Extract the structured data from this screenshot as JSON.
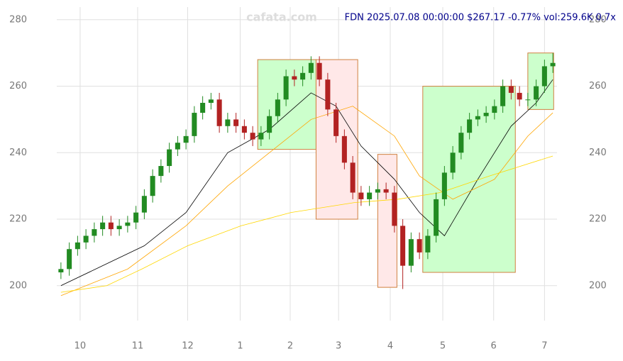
{
  "chart_data": {
    "type": "candlestick",
    "title": "FDN 2025.07.08 00:00:00 $267.17 -0.77% vol:259.6K 0.7x",
    "watermark": "cafata.com",
    "x": [
      0,
      1,
      2,
      3,
      4,
      5,
      6,
      7,
      8,
      9,
      10,
      11,
      12,
      13,
      14,
      15,
      16,
      17,
      18,
      19,
      20,
      21,
      22,
      23,
      24,
      25,
      26,
      27,
      28,
      29,
      30,
      31,
      32,
      33,
      34,
      35,
      36,
      37,
      38,
      39,
      40,
      41,
      42,
      43,
      44,
      45,
      46,
      47,
      48,
      49,
      50,
      51,
      52,
      53,
      54,
      55,
      56,
      57,
      58,
      59
    ],
    "open": [
      204,
      205,
      211,
      213,
      215,
      217,
      219,
      217,
      218,
      219,
      222,
      227,
      233,
      236,
      241,
      243,
      245,
      252,
      255,
      256,
      248,
      250,
      248,
      246,
      244,
      246,
      251,
      256,
      263,
      262,
      264,
      267,
      262,
      253,
      245,
      237,
      228,
      226,
      228,
      229,
      228,
      218,
      206,
      214,
      210,
      215,
      226,
      234,
      240,
      246,
      250,
      251,
      252,
      254,
      260,
      258,
      256,
      256,
      260,
      266
    ],
    "high": [
      207,
      213,
      215,
      217,
      219,
      221,
      221,
      220,
      221,
      224,
      229,
      235,
      238,
      243,
      245,
      247,
      254,
      257,
      258,
      258,
      252,
      252,
      250,
      248,
      248,
      253,
      258,
      265,
      265,
      266,
      269,
      269,
      264,
      255,
      247,
      239,
      230,
      230,
      231,
      231,
      230,
      220,
      216,
      216,
      217,
      228,
      236,
      242,
      248,
      252,
      253,
      254,
      256,
      262,
      262,
      260,
      258,
      262,
      268,
      270
    ],
    "low": [
      202,
      203,
      209,
      211,
      213,
      215,
      215,
      215,
      216,
      217,
      220,
      225,
      231,
      234,
      239,
      241,
      243,
      250,
      253,
      246,
      246,
      246,
      244,
      242,
      242,
      244,
      249,
      254,
      260,
      260,
      262,
      260,
      251,
      243,
      235,
      226,
      224,
      224,
      226,
      226,
      216,
      199,
      204,
      208,
      208,
      213,
      224,
      232,
      238,
      244,
      248,
      249,
      250,
      252,
      256,
      254,
      254,
      254,
      258,
      264
    ],
    "close": [
      205,
      211,
      213,
      215,
      217,
      219,
      217,
      218,
      219,
      222,
      227,
      233,
      236,
      241,
      243,
      245,
      252,
      255,
      256,
      248,
      250,
      248,
      246,
      244,
      246,
      251,
      256,
      263,
      262,
      264,
      267,
      262,
      253,
      245,
      237,
      228,
      226,
      228,
      229,
      228,
      218,
      206,
      214,
      210,
      215,
      226,
      234,
      240,
      246,
      250,
      251,
      252,
      254,
      260,
      258,
      256,
      256,
      260,
      266,
      267
    ],
    "up_color": "#228b22",
    "down_color": "#b22222",
    "overlays": [
      {
        "color": "#000000",
        "x": [
          0,
          5,
          10,
          15,
          20,
          25,
          30,
          33,
          36,
          40,
          43,
          46,
          50,
          54,
          57,
          59
        ],
        "values": [
          200,
          206,
          212,
          222,
          240,
          247,
          258,
          254,
          242,
          232,
          222,
          215,
          232,
          248,
          255,
          262
        ]
      },
      {
        "color": "#ffa500",
        "x": [
          0,
          8,
          15,
          20,
          25,
          30,
          35,
          40,
          43,
          47,
          52,
          56,
          59
        ],
        "values": [
          197,
          205,
          218,
          230,
          240,
          250,
          254,
          245,
          233,
          226,
          232,
          245,
          252
        ]
      },
      {
        "color": "#ffd700",
        "x": [
          0,
          5.5,
          9.7,
          15.2,
          21.6,
          27.6,
          35.2,
          40.4,
          45.5,
          51.4,
          59
        ],
        "values": [
          198,
          200,
          205,
          212,
          218,
          222,
          225,
          226,
          228,
          233,
          239
        ]
      }
    ],
    "boxes": [
      {
        "x": [
          23.6,
          30.6
        ],
        "y": [
          241,
          268
        ],
        "color": "#ccffcc"
      },
      {
        "x": [
          30.6,
          35.6
        ],
        "y": [
          220,
          268
        ],
        "color": "#ffe8e8"
      },
      {
        "x": [
          38.0,
          40.3
        ],
        "y": [
          199.5,
          239.5
        ],
        "color": "#ffe8e8"
      },
      {
        "x": [
          43.4,
          54.5
        ],
        "y": [
          204,
          260
        ],
        "color": "#ccffcc"
      },
      {
        "x": [
          56.0,
          59.1
        ],
        "y": [
          253,
          270
        ],
        "color": "#ccffcc"
      }
    ],
    "xlim": [
      -0.5,
      59.5
    ],
    "ylim": [
      189.5,
      283.8
    ],
    "xticks": [
      {
        "value": 2.3,
        "label": "10"
      },
      {
        "value": 9.2,
        "label": "11"
      },
      {
        "value": 15.2,
        "label": "12"
      },
      {
        "value": 21.5,
        "label": "1"
      },
      {
        "value": 27.5,
        "label": "2"
      },
      {
        "value": 33.3,
        "label": "3"
      },
      {
        "value": 39.5,
        "label": "4"
      },
      {
        "value": 45.8,
        "label": "5"
      },
      {
        "value": 51.9,
        "label": "6"
      },
      {
        "value": 58.0,
        "label": "7"
      }
    ],
    "yticks": [
      200,
      220,
      240,
      260,
      280
    ],
    "grid": true
  }
}
